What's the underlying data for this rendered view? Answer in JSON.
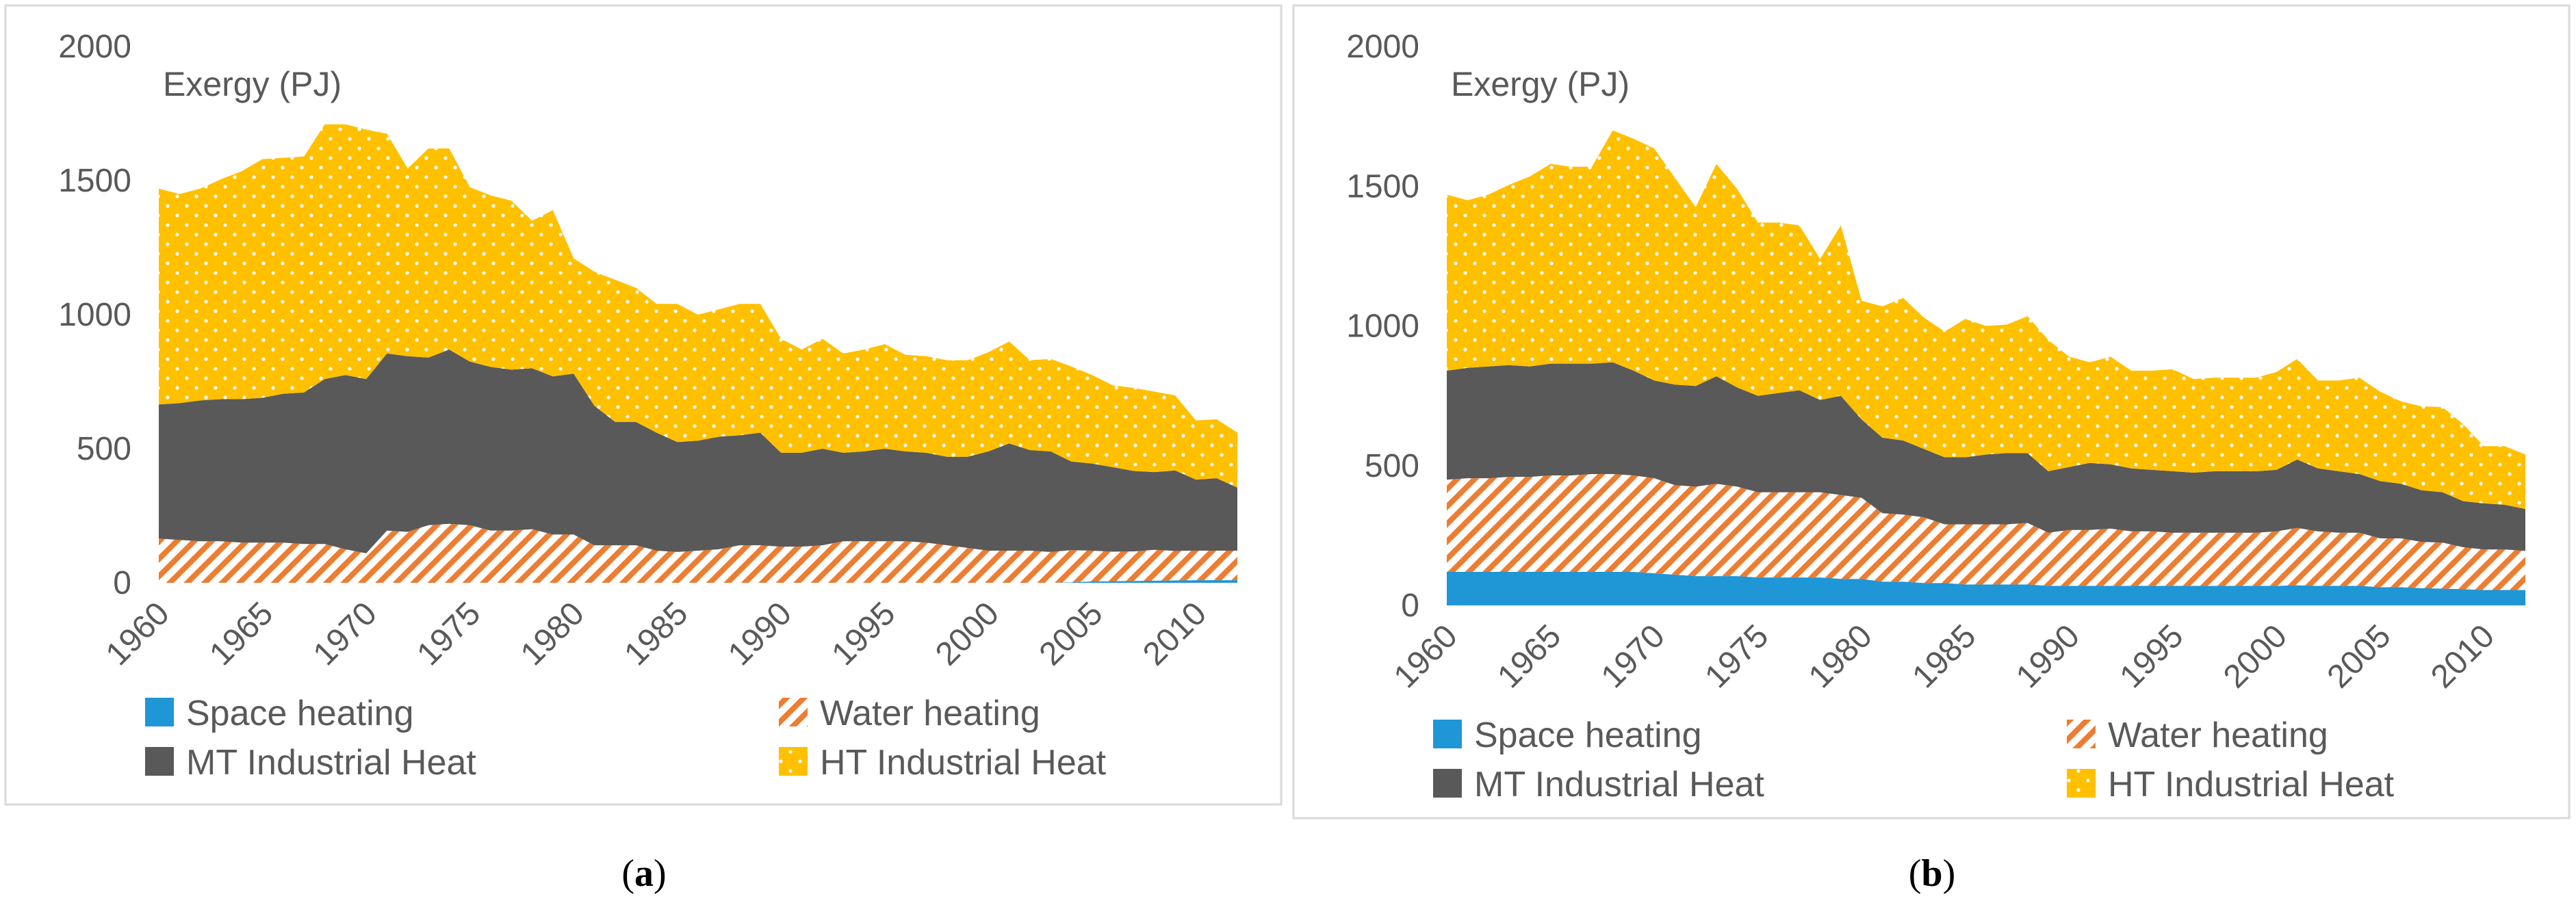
{
  "chart_data": [
    {
      "type": "area",
      "stacked": true,
      "caption_open": "(",
      "caption_letter": "a",
      "caption_close": ")",
      "ylabel": "Exergy (PJ)",
      "ylim": [
        0,
        2000
      ],
      "yticks": [
        "0",
        "500",
        "1000",
        "1500",
        "2000"
      ],
      "xlim": [
        1960,
        2012
      ],
      "xticks": [
        "1960",
        "1965",
        "1970",
        "1975",
        "1980",
        "1985",
        "1990",
        "1995",
        "2000",
        "2005",
        "2010"
      ],
      "grid": false,
      "legend_position": "bottom",
      "x": [
        1960,
        1961,
        1962,
        1963,
        1964,
        1965,
        1966,
        1967,
        1968,
        1969,
        1970,
        1971,
        1972,
        1973,
        1974,
        1975,
        1976,
        1977,
        1978,
        1979,
        1980,
        1981,
        1982,
        1983,
        1984,
        1985,
        1986,
        1987,
        1988,
        1989,
        1990,
        1991,
        1992,
        1993,
        1994,
        1995,
        1996,
        1997,
        1998,
        1999,
        2000,
        2001,
        2002,
        2003,
        2004,
        2005,
        2006,
        2007,
        2008,
        2009,
        2010,
        2011,
        2012
      ],
      "series": [
        {
          "name": "Space heating",
          "color": "#1f96d6",
          "pattern": "solid",
          "values": [
            0,
            0,
            0,
            0,
            0,
            0,
            0,
            0,
            0,
            0,
            0,
            0,
            0,
            0,
            0,
            0,
            0,
            0,
            0,
            0,
            0,
            0,
            0,
            0,
            0,
            0,
            0,
            0,
            0,
            0,
            0,
            0,
            0,
            0,
            0,
            0,
            0,
            0,
            0,
            0,
            0,
            0,
            0,
            0,
            2,
            5,
            6,
            7,
            8,
            9,
            10,
            10,
            10
          ]
        },
        {
          "name": "Water heating",
          "color": "#ed7d31",
          "pattern": "diagonal",
          "values": [
            165,
            160,
            155,
            155,
            150,
            150,
            150,
            145,
            145,
            125,
            110,
            195,
            190,
            215,
            220,
            215,
            195,
            195,
            200,
            180,
            180,
            140,
            140,
            140,
            120,
            115,
            120,
            125,
            140,
            140,
            135,
            135,
            140,
            155,
            155,
            155,
            155,
            150,
            140,
            130,
            120,
            120,
            120,
            115,
            120,
            115,
            110,
            110,
            115,
            110,
            110,
            110,
            110
          ]
        },
        {
          "name": "MT Industrial Heat",
          "color": "#595959",
          "pattern": "solid",
          "values": [
            500,
            510,
            525,
            530,
            535,
            540,
            555,
            565,
            615,
            650,
            650,
            660,
            655,
            625,
            650,
            610,
            610,
            600,
            600,
            590,
            600,
            520,
            460,
            460,
            440,
            410,
            410,
            420,
            410,
            420,
            350,
            350,
            360,
            330,
            335,
            345,
            335,
            335,
            330,
            340,
            370,
            400,
            375,
            375,
            330,
            325,
            315,
            300,
            290,
            300,
            265,
            270,
            235
          ]
        },
        {
          "name": "HT Industrial Heat",
          "color": "#ffc000",
          "pattern": "dots",
          "values": [
            805,
            780,
            790,
            820,
            850,
            890,
            880,
            880,
            950,
            935,
            930,
            820,
            700,
            780,
            750,
            650,
            640,
            630,
            550,
            620,
            430,
            500,
            530,
            500,
            480,
            515,
            470,
            475,
            490,
            480,
            425,
            385,
            410,
            370,
            380,
            390,
            360,
            360,
            360,
            360,
            370,
            380,
            335,
            345,
            355,
            330,
            305,
            310,
            300,
            280,
            220,
            220,
            205
          ]
        }
      ]
    },
    {
      "type": "area",
      "stacked": true,
      "caption_open": "(",
      "caption_letter": "b",
      "caption_close": ")",
      "ylabel": "Exergy (PJ)",
      "ylim": [
        0,
        2000
      ],
      "yticks": [
        "0",
        "500",
        "1000",
        "1500",
        "2000"
      ],
      "xlim": [
        1960,
        2012
      ],
      "xticks": [
        "1960",
        "1965",
        "1970",
        "1975",
        "1980",
        "1985",
        "1990",
        "1995",
        "2000",
        "2005",
        "2010"
      ],
      "grid": false,
      "legend_position": "bottom",
      "x": [
        1960,
        1961,
        1962,
        1963,
        1964,
        1965,
        1966,
        1967,
        1968,
        1969,
        1970,
        1971,
        1972,
        1973,
        1974,
        1975,
        1976,
        1977,
        1978,
        1979,
        1980,
        1981,
        1982,
        1983,
        1984,
        1985,
        1986,
        1987,
        1988,
        1989,
        1990,
        1991,
        1992,
        1993,
        1994,
        1995,
        1996,
        1997,
        1998,
        1999,
        2000,
        2001,
        2002,
        2003,
        2004,
        2005,
        2006,
        2007,
        2008,
        2009,
        2010,
        2011,
        2012
      ],
      "series": [
        {
          "name": "Space heating",
          "color": "#1f96d6",
          "pattern": "solid",
          "values": [
            120,
            120,
            120,
            120,
            120,
            120,
            120,
            120,
            120,
            120,
            115,
            110,
            105,
            105,
            105,
            100,
            100,
            100,
            100,
            95,
            95,
            85,
            85,
            80,
            80,
            75,
            75,
            75,
            75,
            70,
            70,
            70,
            70,
            70,
            70,
            70,
            70,
            70,
            70,
            70,
            70,
            72,
            70,
            70,
            70,
            65,
            65,
            62,
            60,
            58,
            55,
            55,
            55
          ]
        },
        {
          "name": "Water heating",
          "color": "#ed7d31",
          "pattern": "diagonal",
          "values": [
            330,
            335,
            335,
            340,
            340,
            345,
            345,
            350,
            350,
            345,
            340,
            320,
            320,
            330,
            320,
            305,
            305,
            305,
            305,
            300,
            290,
            245,
            240,
            235,
            210,
            215,
            215,
            215,
            220,
            190,
            200,
            200,
            205,
            195,
            195,
            190,
            190,
            190,
            190,
            190,
            195,
            205,
            195,
            190,
            190,
            175,
            175,
            165,
            165,
            150,
            145,
            145,
            140
          ]
        },
        {
          "name": "MT Industrial Heat",
          "color": "#595959",
          "pattern": "solid",
          "values": [
            390,
            395,
            400,
            400,
            395,
            400,
            400,
            395,
            400,
            375,
            350,
            360,
            360,
            385,
            355,
            345,
            355,
            365,
            330,
            355,
            280,
            270,
            265,
            245,
            240,
            240,
            250,
            255,
            250,
            220,
            225,
            240,
            230,
            225,
            220,
            220,
            215,
            220,
            220,
            220,
            220,
            245,
            225,
            220,
            210,
            205,
            195,
            185,
            180,
            165,
            165,
            160,
            150
          ]
        },
        {
          "name": "HT Industrial Heat",
          "color": "#ffc000",
          "pattern": "dots",
          "values": [
            630,
            600,
            615,
            645,
            680,
            715,
            705,
            705,
            830,
            830,
            830,
            740,
            640,
            760,
            710,
            620,
            610,
            590,
            505,
            610,
            425,
            470,
            510,
            470,
            450,
            495,
            460,
            460,
            490,
            470,
            395,
            360,
            385,
            350,
            355,
            365,
            335,
            335,
            335,
            335,
            350,
            360,
            315,
            325,
            345,
            320,
            295,
            300,
            305,
            275,
            205,
            210,
            195
          ]
        }
      ]
    }
  ]
}
